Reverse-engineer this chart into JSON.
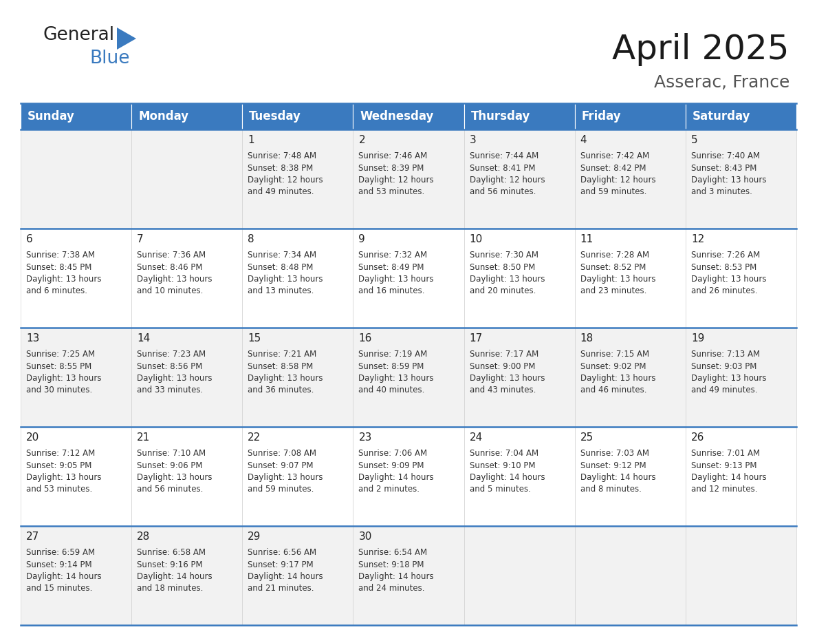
{
  "title": "April 2025",
  "subtitle": "Asserac, France",
  "header_bg": "#3a7abf",
  "header_fg": "#ffffff",
  "row_colors": [
    "#f2f2f2",
    "#ffffff"
  ],
  "border_color": "#3a7abf",
  "cell_border_color": "#cccccc",
  "day_names": [
    "Sunday",
    "Monday",
    "Tuesday",
    "Wednesday",
    "Thursday",
    "Friday",
    "Saturday"
  ],
  "title_fontsize": 36,
  "subtitle_fontsize": 18,
  "header_fontsize": 12,
  "day_num_fontsize": 11,
  "cell_fontsize": 8.5,
  "logo_general_color": "#222222",
  "logo_blue_color": "#3a7abf",
  "logo_triangle_color": "#3a7abf",
  "days": [
    {
      "day": 1,
      "col": 2,
      "row": 0,
      "sunrise": "7:48 AM",
      "sunset": "8:38 PM",
      "daylight_hours": 12,
      "daylight_minutes": 49
    },
    {
      "day": 2,
      "col": 3,
      "row": 0,
      "sunrise": "7:46 AM",
      "sunset": "8:39 PM",
      "daylight_hours": 12,
      "daylight_minutes": 53
    },
    {
      "day": 3,
      "col": 4,
      "row": 0,
      "sunrise": "7:44 AM",
      "sunset": "8:41 PM",
      "daylight_hours": 12,
      "daylight_minutes": 56
    },
    {
      "day": 4,
      "col": 5,
      "row": 0,
      "sunrise": "7:42 AM",
      "sunset": "8:42 PM",
      "daylight_hours": 12,
      "daylight_minutes": 59
    },
    {
      "day": 5,
      "col": 6,
      "row": 0,
      "sunrise": "7:40 AM",
      "sunset": "8:43 PM",
      "daylight_hours": 13,
      "daylight_minutes": 3
    },
    {
      "day": 6,
      "col": 0,
      "row": 1,
      "sunrise": "7:38 AM",
      "sunset": "8:45 PM",
      "daylight_hours": 13,
      "daylight_minutes": 6
    },
    {
      "day": 7,
      "col": 1,
      "row": 1,
      "sunrise": "7:36 AM",
      "sunset": "8:46 PM",
      "daylight_hours": 13,
      "daylight_minutes": 10
    },
    {
      "day": 8,
      "col": 2,
      "row": 1,
      "sunrise": "7:34 AM",
      "sunset": "8:48 PM",
      "daylight_hours": 13,
      "daylight_minutes": 13
    },
    {
      "day": 9,
      "col": 3,
      "row": 1,
      "sunrise": "7:32 AM",
      "sunset": "8:49 PM",
      "daylight_hours": 13,
      "daylight_minutes": 16
    },
    {
      "day": 10,
      "col": 4,
      "row": 1,
      "sunrise": "7:30 AM",
      "sunset": "8:50 PM",
      "daylight_hours": 13,
      "daylight_minutes": 20
    },
    {
      "day": 11,
      "col": 5,
      "row": 1,
      "sunrise": "7:28 AM",
      "sunset": "8:52 PM",
      "daylight_hours": 13,
      "daylight_minutes": 23
    },
    {
      "day": 12,
      "col": 6,
      "row": 1,
      "sunrise": "7:26 AM",
      "sunset": "8:53 PM",
      "daylight_hours": 13,
      "daylight_minutes": 26
    },
    {
      "day": 13,
      "col": 0,
      "row": 2,
      "sunrise": "7:25 AM",
      "sunset": "8:55 PM",
      "daylight_hours": 13,
      "daylight_minutes": 30
    },
    {
      "day": 14,
      "col": 1,
      "row": 2,
      "sunrise": "7:23 AM",
      "sunset": "8:56 PM",
      "daylight_hours": 13,
      "daylight_minutes": 33
    },
    {
      "day": 15,
      "col": 2,
      "row": 2,
      "sunrise": "7:21 AM",
      "sunset": "8:58 PM",
      "daylight_hours": 13,
      "daylight_minutes": 36
    },
    {
      "day": 16,
      "col": 3,
      "row": 2,
      "sunrise": "7:19 AM",
      "sunset": "8:59 PM",
      "daylight_hours": 13,
      "daylight_minutes": 40
    },
    {
      "day": 17,
      "col": 4,
      "row": 2,
      "sunrise": "7:17 AM",
      "sunset": "9:00 PM",
      "daylight_hours": 13,
      "daylight_minutes": 43
    },
    {
      "day": 18,
      "col": 5,
      "row": 2,
      "sunrise": "7:15 AM",
      "sunset": "9:02 PM",
      "daylight_hours": 13,
      "daylight_minutes": 46
    },
    {
      "day": 19,
      "col": 6,
      "row": 2,
      "sunrise": "7:13 AM",
      "sunset": "9:03 PM",
      "daylight_hours": 13,
      "daylight_minutes": 49
    },
    {
      "day": 20,
      "col": 0,
      "row": 3,
      "sunrise": "7:12 AM",
      "sunset": "9:05 PM",
      "daylight_hours": 13,
      "daylight_minutes": 53
    },
    {
      "day": 21,
      "col": 1,
      "row": 3,
      "sunrise": "7:10 AM",
      "sunset": "9:06 PM",
      "daylight_hours": 13,
      "daylight_minutes": 56
    },
    {
      "day": 22,
      "col": 2,
      "row": 3,
      "sunrise": "7:08 AM",
      "sunset": "9:07 PM",
      "daylight_hours": 13,
      "daylight_minutes": 59
    },
    {
      "day": 23,
      "col": 3,
      "row": 3,
      "sunrise": "7:06 AM",
      "sunset": "9:09 PM",
      "daylight_hours": 14,
      "daylight_minutes": 2
    },
    {
      "day": 24,
      "col": 4,
      "row": 3,
      "sunrise": "7:04 AM",
      "sunset": "9:10 PM",
      "daylight_hours": 14,
      "daylight_minutes": 5
    },
    {
      "day": 25,
      "col": 5,
      "row": 3,
      "sunrise": "7:03 AM",
      "sunset": "9:12 PM",
      "daylight_hours": 14,
      "daylight_minutes": 8
    },
    {
      "day": 26,
      "col": 6,
      "row": 3,
      "sunrise": "7:01 AM",
      "sunset": "9:13 PM",
      "daylight_hours": 14,
      "daylight_minutes": 12
    },
    {
      "day": 27,
      "col": 0,
      "row": 4,
      "sunrise": "6:59 AM",
      "sunset": "9:14 PM",
      "daylight_hours": 14,
      "daylight_minutes": 15
    },
    {
      "day": 28,
      "col": 1,
      "row": 4,
      "sunrise": "6:58 AM",
      "sunset": "9:16 PM",
      "daylight_hours": 14,
      "daylight_minutes": 18
    },
    {
      "day": 29,
      "col": 2,
      "row": 4,
      "sunrise": "6:56 AM",
      "sunset": "9:17 PM",
      "daylight_hours": 14,
      "daylight_minutes": 21
    },
    {
      "day": 30,
      "col": 3,
      "row": 4,
      "sunrise": "6:54 AM",
      "sunset": "9:18 PM",
      "daylight_hours": 14,
      "daylight_minutes": 24
    }
  ]
}
